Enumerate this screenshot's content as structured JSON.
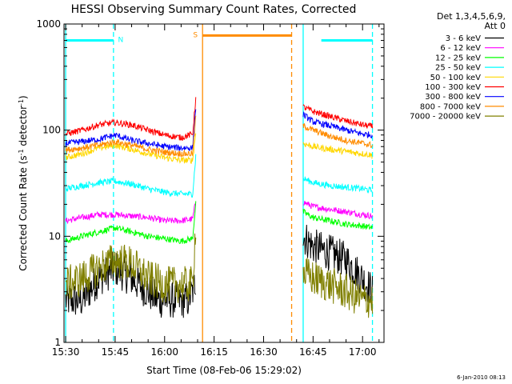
{
  "chart_data": {
    "type": "line",
    "title": "HESSI Observing Summary Count Rates, Corrected",
    "xlabel": "Start Time (08-Feb-06 15:29:02)",
    "ylabel": "Corrected Count Rate (s⁻¹ detector⁻¹)",
    "ylabel_parts": [
      "Corrected Count Rate (s",
      "-1",
      " detector",
      "-1",
      ")"
    ],
    "footer": "6-Jan-2010 08:13",
    "y_scale": "log",
    "ylim": [
      1,
      1000
    ],
    "xlim_minutes": [
      -0.5,
      96.5
    ],
    "x_ticks": [
      {
        "label": "15:30",
        "minutes": 0
      },
      {
        "label": "15:45",
        "minutes": 15
      },
      {
        "label": "16:00",
        "minutes": 30
      },
      {
        "label": "16:15",
        "minutes": 45
      },
      {
        "label": "16:30",
        "minutes": 60
      },
      {
        "label": "16:45",
        "minutes": 75
      },
      {
        "label": "17:00",
        "minutes": 90
      }
    ],
    "y_ticks": [
      {
        "label": "1",
        "value": 1
      },
      {
        "label": "10",
        "value": 10
      },
      {
        "label": "100",
        "value": 100
      },
      {
        "label": "1000",
        "value": 1000
      }
    ],
    "legend": {
      "header": [
        "Det 1,3,4,5,6,9,",
        "Att 0"
      ],
      "placement": "right"
    },
    "series": [
      {
        "name": "3 - 6 keV",
        "color": "#000000",
        "points": [
          [
            0,
            2.5
          ],
          [
            5,
            2.5
          ],
          [
            10,
            4
          ],
          [
            15,
            5
          ],
          [
            20,
            4
          ],
          [
            25,
            3
          ],
          [
            28,
            2.5
          ],
          [
            37,
            2.5
          ],
          [
            38.5,
            3
          ],
          [
            39.5,
            4
          ]
        ],
        "points2": [
          [
            72,
            10
          ],
          [
            75,
            8
          ],
          [
            80,
            7
          ],
          [
            85,
            6
          ],
          [
            90,
            4
          ],
          [
            93,
            3
          ]
        ]
      },
      {
        "name": "6 - 12 keV",
        "color": "#ff00ff",
        "points": [
          [
            0,
            14
          ],
          [
            5,
            15
          ],
          [
            10,
            16
          ],
          [
            15,
            16
          ],
          [
            20,
            15.5
          ],
          [
            25,
            15
          ],
          [
            30,
            14
          ],
          [
            35,
            14
          ],
          [
            38.5,
            14.5
          ],
          [
            39.5,
            22
          ]
        ],
        "points2": [
          [
            72,
            21
          ],
          [
            75,
            19
          ],
          [
            80,
            18
          ],
          [
            85,
            17
          ],
          [
            90,
            16
          ],
          [
            93,
            15.5
          ]
        ]
      },
      {
        "name": "12 - 25 keV",
        "color": "#00ff00",
        "points": [
          [
            0,
            9
          ],
          [
            5,
            10
          ],
          [
            10,
            11
          ],
          [
            15,
            12
          ],
          [
            20,
            11
          ],
          [
            25,
            10
          ],
          [
            30,
            9.5
          ],
          [
            35,
            9
          ],
          [
            38.5,
            9.5
          ],
          [
            39.5,
            22
          ]
        ],
        "points2": [
          [
            72,
            17
          ],
          [
            75,
            15
          ],
          [
            80,
            14
          ],
          [
            85,
            13
          ],
          [
            90,
            12.5
          ],
          [
            93,
            12
          ]
        ]
      },
      {
        "name": "25 - 50 keV",
        "color": "#00ffff",
        "points": [
          [
            0,
            28
          ],
          [
            5,
            30
          ],
          [
            10,
            32
          ],
          [
            15,
            33
          ],
          [
            20,
            31
          ],
          [
            25,
            28
          ],
          [
            30,
            26
          ],
          [
            35,
            25
          ],
          [
            38.5,
            25
          ],
          [
            39.5,
            60
          ]
        ],
        "points2": [
          [
            72,
            35
          ],
          [
            75,
            32
          ],
          [
            80,
            30
          ],
          [
            85,
            29
          ],
          [
            90,
            28
          ],
          [
            93,
            27
          ]
        ]
      },
      {
        "name": "50 - 100 keV",
        "color": "#ffd700",
        "points": [
          [
            0,
            55
          ],
          [
            5,
            60
          ],
          [
            10,
            68
          ],
          [
            15,
            72
          ],
          [
            20,
            66
          ],
          [
            25,
            60
          ],
          [
            30,
            55
          ],
          [
            35,
            52
          ],
          [
            38.5,
            52
          ],
          [
            39.5,
            100
          ]
        ],
        "points2": [
          [
            72,
            75
          ],
          [
            75,
            70
          ],
          [
            80,
            66
          ],
          [
            85,
            63
          ],
          [
            90,
            60
          ],
          [
            93,
            58
          ]
        ]
      },
      {
        "name": "100 - 300 keV",
        "color": "#ff0000",
        "points": [
          [
            0,
            92
          ],
          [
            5,
            100
          ],
          [
            10,
            112
          ],
          [
            15,
            118
          ],
          [
            20,
            112
          ],
          [
            25,
            100
          ],
          [
            30,
            90
          ],
          [
            35,
            85
          ],
          [
            38.5,
            92
          ],
          [
            39.5,
            210
          ]
        ],
        "points2": [
          [
            72,
            165
          ],
          [
            75,
            150
          ],
          [
            80,
            135
          ],
          [
            85,
            122
          ],
          [
            90,
            112
          ],
          [
            93,
            108
          ]
        ]
      },
      {
        "name": "300 - 800 keV",
        "color": "#0000ff",
        "points": [
          [
            0,
            75
          ],
          [
            5,
            78
          ],
          [
            10,
            82
          ],
          [
            15,
            90
          ],
          [
            20,
            80
          ],
          [
            25,
            75
          ],
          [
            30,
            70
          ],
          [
            35,
            68
          ],
          [
            38.5,
            68
          ],
          [
            39.5,
            170
          ]
        ],
        "points2": [
          [
            72,
            140
          ],
          [
            75,
            120
          ],
          [
            80,
            110
          ],
          [
            85,
            100
          ],
          [
            90,
            92
          ],
          [
            93,
            90
          ]
        ]
      },
      {
        "name": "800 - 7000 keV",
        "color": "#ff8c00",
        "points": [
          [
            0,
            65
          ],
          [
            5,
            68
          ],
          [
            10,
            72
          ],
          [
            15,
            78
          ],
          [
            20,
            72
          ],
          [
            25,
            66
          ],
          [
            30,
            62
          ],
          [
            35,
            60
          ],
          [
            38.5,
            60
          ],
          [
            39.5,
            140
          ]
        ],
        "points2": [
          [
            72,
            110
          ],
          [
            75,
            100
          ],
          [
            80,
            88
          ],
          [
            85,
            80
          ],
          [
            90,
            75
          ],
          [
            93,
            72
          ]
        ]
      },
      {
        "name": "7000 - 20000 keV",
        "color": "#808000",
        "points": [
          [
            0,
            3.5
          ],
          [
            5,
            4
          ],
          [
            10,
            5
          ],
          [
            15,
            6
          ],
          [
            20,
            5.5
          ],
          [
            25,
            4
          ],
          [
            30,
            3.5
          ],
          [
            35,
            3.5
          ],
          [
            38.5,
            3.5
          ],
          [
            39.5,
            15
          ]
        ],
        "points2": [
          [
            72,
            4.5
          ],
          [
            75,
            4
          ],
          [
            80,
            3.5
          ],
          [
            85,
            3
          ],
          [
            90,
            2.5
          ],
          [
            93,
            2.5
          ]
        ]
      }
    ],
    "flag_bars": [
      {
        "label": "N",
        "color": "#00ffff",
        "y_value": 700,
        "ranges": [
          [
            0,
            14.5
          ],
          [
            77.5,
            93
          ]
        ]
      },
      {
        "label": "S",
        "color": "#ff8c00",
        "y_value": 780,
        "ranges": [
          [
            41.5,
            68.5
          ]
        ]
      }
    ],
    "vertical_lines": [
      {
        "minutes": 0,
        "color": "#00ffff",
        "style": "solid"
      },
      {
        "minutes": 14.5,
        "color": "#00ffff",
        "style": "dashed"
      },
      {
        "minutes": 41.5,
        "color": "#ff8c00",
        "style": "solid"
      },
      {
        "minutes": 68.5,
        "color": "#ff8c00",
        "style": "dashed"
      },
      {
        "minutes": 72,
        "color": "#00ffff",
        "style": "solid"
      },
      {
        "minutes": 93,
        "color": "#00ffff",
        "style": "dashed"
      }
    ],
    "grid": false
  }
}
